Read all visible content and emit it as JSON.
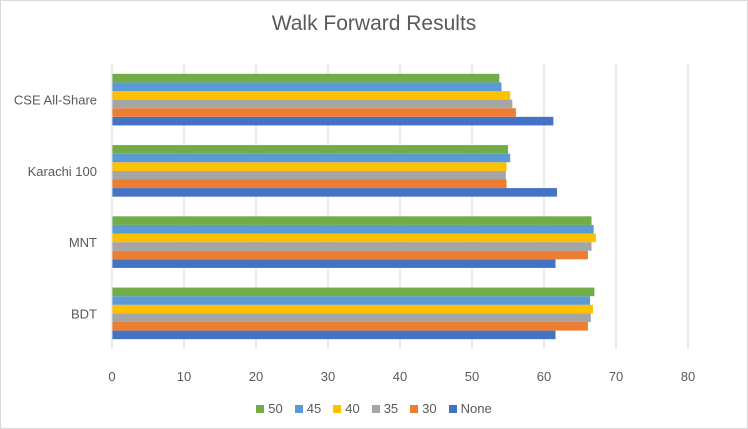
{
  "chart_data": {
    "type": "bar",
    "orientation": "horizontal",
    "title": "Walk Forward Results",
    "categories": [
      "BDT",
      "MNT",
      "Karachi 100",
      "CSE All-Share"
    ],
    "xlim": [
      0,
      80
    ],
    "xticks": [
      0,
      10,
      20,
      30,
      40,
      50,
      60,
      70,
      80
    ],
    "grid": true,
    "legend_position": "bottom",
    "series": [
      {
        "name": "None",
        "color": "#4472C4",
        "values": [
          61.6,
          61.6,
          61.8,
          61.3
        ]
      },
      {
        "name": "30",
        "color": "#ED7D31",
        "values": [
          66.1,
          66.1,
          54.8,
          56.1
        ]
      },
      {
        "name": "35",
        "color": "#A5A5A5",
        "values": [
          66.5,
          66.6,
          54.7,
          55.6
        ]
      },
      {
        "name": "40",
        "color": "#FFC000",
        "values": [
          66.8,
          67.2,
          54.8,
          55.3
        ]
      },
      {
        "name": "45",
        "color": "#5B9BD5",
        "values": [
          66.4,
          66.9,
          55.3,
          54.1
        ]
      },
      {
        "name": "50",
        "color": "#70AD47",
        "values": [
          67.0,
          66.6,
          55.0,
          53.8
        ]
      }
    ]
  }
}
